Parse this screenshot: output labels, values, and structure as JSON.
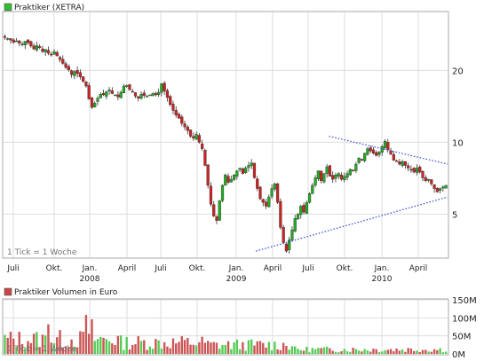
{
  "colors": {
    "up": "#22aa22",
    "down": "#cc2222",
    "trendline": "#3344dd",
    "grid": "#dddddd",
    "frame": "#aaaaaa",
    "legend_price": "#33bb33",
    "legend_volume": "#cc4444"
  },
  "chart_data": [
    {
      "type": "candlestick",
      "legend": "Praktiker (XETRA)",
      "note": "1 Tick = 1 Woche",
      "y_scale": "log",
      "ylim": [
        3.3,
        35
      ],
      "y_ticks": [
        {
          "value": 20,
          "label": "20"
        },
        {
          "value": 10,
          "label": "10"
        },
        {
          "value": 5,
          "label": "5"
        }
      ],
      "x_month_labels": [
        "Juli",
        "Okt.",
        "Jan.",
        "April",
        "Juli",
        "Okt.",
        "Jan.",
        "April",
        "Juli",
        "Okt.",
        "Jan.",
        "April"
      ],
      "x_year_labels": [
        "2008",
        "2009",
        "2010"
      ],
      "x_range_weeks": [
        0,
        152
      ],
      "weekly_close": [
        27.5,
        27.2,
        26.8,
        26.2,
        26.6,
        26.0,
        25.8,
        26.5,
        26.1,
        25.3,
        24.6,
        25.4,
        24.9,
        24.0,
        24.5,
        23.6,
        23.2,
        24.0,
        23.0,
        22.2,
        21.4,
        20.6,
        20.1,
        19.2,
        19.8,
        19.4,
        18.8,
        18.0,
        17.2,
        15.2,
        14.0,
        14.6,
        15.3,
        15.9,
        15.8,
        16.3,
        16.6,
        16.0,
        15.8,
        15.5,
        16.2,
        17.2,
        17.3,
        16.6,
        16.2,
        15.6,
        15.3,
        15.9,
        15.7,
        15.6,
        15.8,
        16.0,
        15.8,
        16.2,
        17.6,
        16.4,
        15.4,
        14.4,
        13.6,
        13.0,
        12.6,
        12.0,
        11.6,
        11.2,
        10.6,
        10.4,
        10.8,
        10.0,
        9.4,
        8.0,
        6.6,
        5.5,
        4.9,
        4.7,
        5.7,
        6.6,
        7.3,
        6.8,
        7.0,
        7.3,
        7.6,
        7.8,
        7.4,
        7.8,
        8.0,
        8.2,
        7.1,
        6.4,
        5.8,
        5.6,
        5.4,
        5.9,
        6.4,
        6.7,
        5.6,
        4.4,
        3.8,
        3.5,
        3.9,
        4.3,
        4.8,
        5.0,
        5.4,
        5.1,
        5.6,
        6.1,
        6.6,
        7.1,
        7.6,
        6.9,
        7.4,
        7.9,
        7.2,
        7.0,
        7.3,
        7.4,
        7.0,
        7.2,
        7.4,
        7.7,
        7.6,
        8.1,
        8.6,
        8.4,
        9.0,
        9.4,
        9.2,
        9.0,
        8.8,
        9.1,
        9.6,
        10.1,
        9.3,
        8.9,
        8.4,
        8.3,
        8.1,
        8.3,
        8.0,
        7.8,
        7.7,
        7.5,
        7.8,
        7.5,
        7.1,
        6.9,
        7.0,
        6.7,
        6.4,
        6.2,
        6.4,
        6.5,
        6.6
      ],
      "trendlines": [
        {
          "name": "upper-resistance",
          "from": {
            "x": 129,
            "y": 10.6
          },
          "to": {
            "x": 176,
            "y": 8.1
          }
        },
        {
          "name": "lower-support",
          "from": {
            "x": 100,
            "y": 3.5
          },
          "to": {
            "x": 176,
            "y": 5.9
          }
        }
      ]
    },
    {
      "type": "bar",
      "legend": "Praktiker Volumen in Euro",
      "y_ticks": [
        {
          "value": 150,
          "label": "150M"
        },
        {
          "value": 100,
          "label": "100M"
        },
        {
          "value": 50,
          "label": "50M"
        },
        {
          "value": 0,
          "label": "0M"
        }
      ],
      "ylim": [
        0,
        150
      ],
      "unit": "M Euro"
    }
  ]
}
